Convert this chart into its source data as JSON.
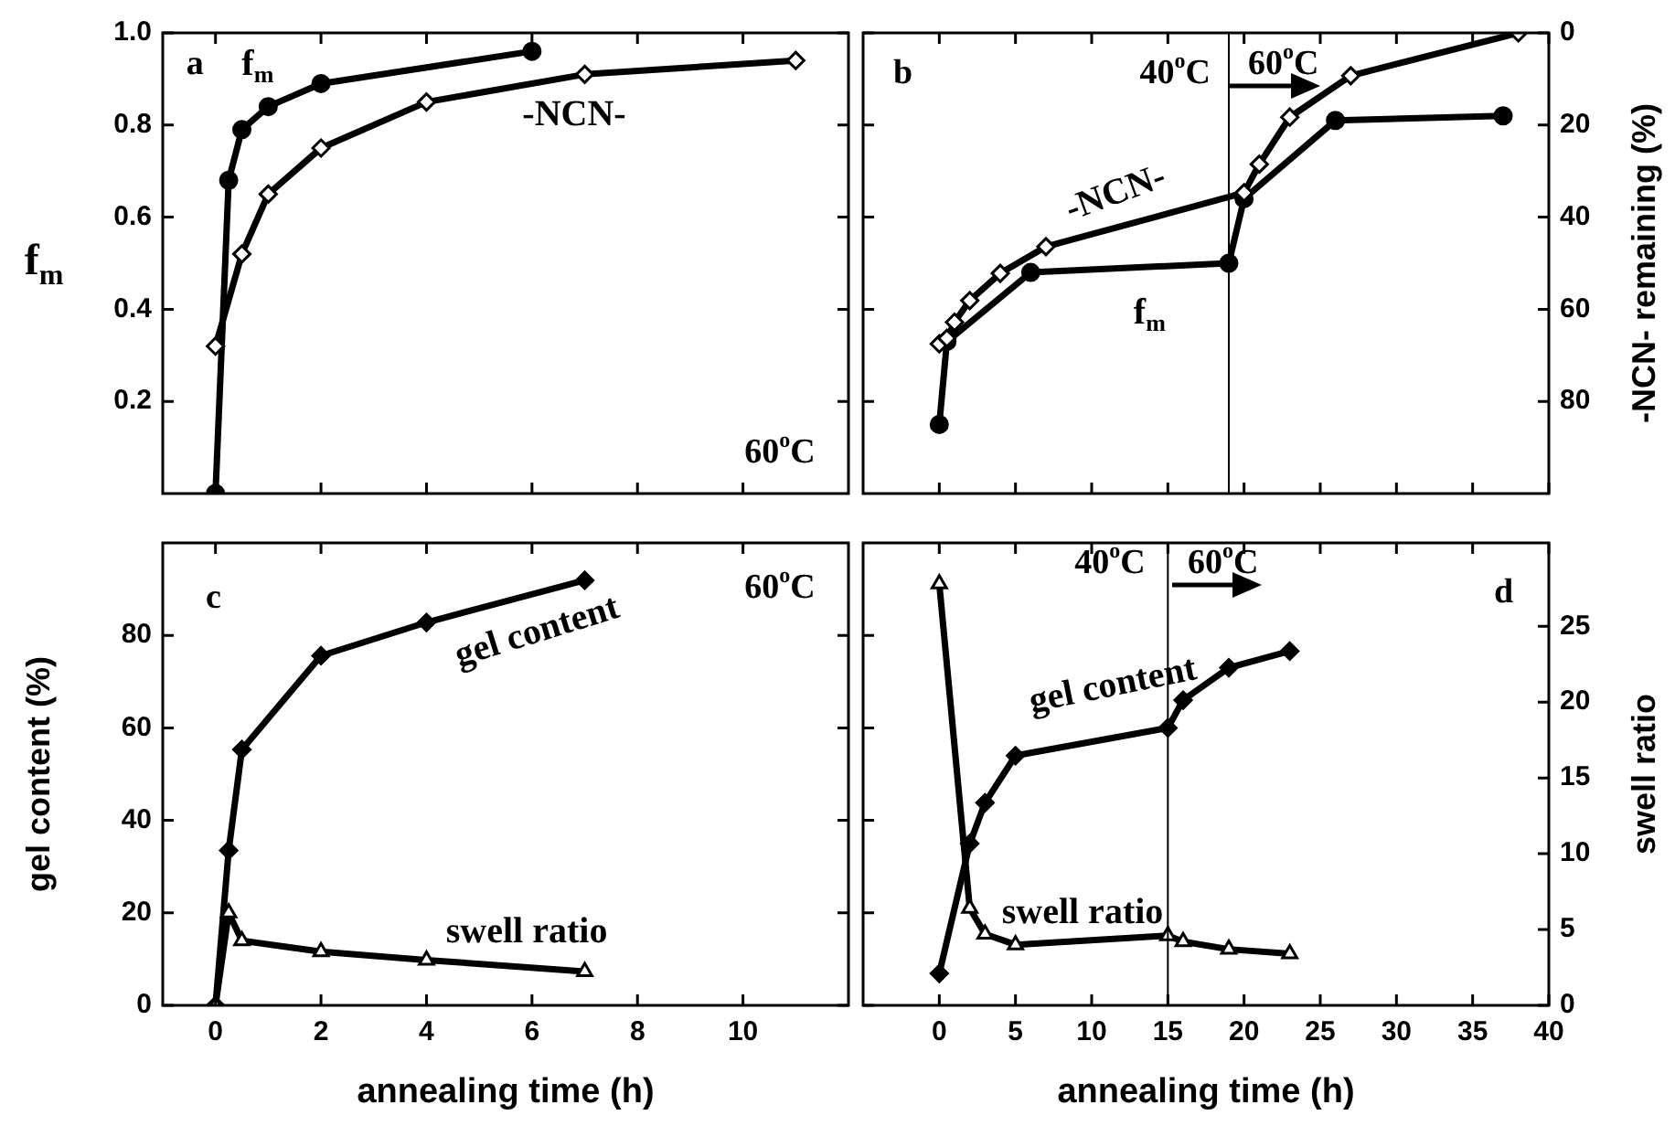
{
  "chart_data": [
    {
      "type": "line",
      "ylabel": "f$_{m}$",
      "xlim": [
        -1,
        12
      ],
      "xticks": [
        0,
        2,
        4,
        6,
        8,
        10
      ],
      "ylim": [
        0,
        1
      ],
      "yticks": [
        0.2,
        0.4,
        0.6,
        0.8,
        {
          "value": 1,
          "label": "1.0"
        }
      ],
      "tick_labels": "y",
      "grid": false,
      "line_style": "solid",
      "annotations": [
        "a",
        "60$^{o}$C"
      ],
      "series": [
        {
          "name": "f$_{m}$",
          "color": "#000000",
          "marker": "circle",
          "x": [
            0,
            0.25,
            0.5,
            1,
            2,
            6
          ],
          "values": [
            0,
            0.68,
            0.79,
            0.84,
            0.89,
            0.96
          ]
        },
        {
          "name": "-NCN-",
          "color": "#000000",
          "marker": "diamond",
          "x": [
            0,
            0.5,
            1,
            2,
            4,
            7,
            11
          ],
          "values": [
            0.32,
            0.52,
            0.65,
            0.75,
            0.85,
            0.91,
            0.94
          ]
        }
      ]
    },
    {
      "type": "line",
      "xlim": [
        -5,
        40
      ],
      "ylim": [
        0,
        1
      ],
      "y2lim": [
        100,
        0
      ],
      "y2ticks": [
        0,
        20,
        40,
        60,
        80
      ],
      "y2label": "-NCN- remaining (%)",
      "tick_labels": [
        "y2"
      ],
      "grid": false,
      "line_style": "solid",
      "ref_lines": [
        {
          "axis": "x",
          "value": 19
        }
      ],
      "annotations": [
        "b",
        "40$^{o}$C",
        "60$^{o}$C"
      ],
      "series": [
        {
          "name": "f$_{m}$",
          "color": "#000000",
          "marker": "circle",
          "x": [
            0,
            0.5,
            6,
            19,
            20,
            26,
            37
          ],
          "values": [
            0.15,
            0.33,
            0.48,
            0.5,
            0.64,
            0.81,
            0.82
          ]
        },
        {
          "name": "-NCN-",
          "color": "#000000",
          "marker": "diamond",
          "axis": "y2",
          "x": [
            0,
            0.5,
            1,
            2,
            4,
            7,
            20,
            21,
            23,
            27,
            38
          ],
          "values": [
            67.5,
            66.3,
            62.8,
            58.1,
            52.2,
            46.4,
            34.7,
            28.5,
            18.3,
            9.3,
            0
          ]
        }
      ]
    },
    {
      "type": "line",
      "xlabel": "annealing time (h)",
      "ylabel": "gel content (%)",
      "xlim": [
        -1,
        12
      ],
      "xticks": [
        0,
        2,
        4,
        6,
        8,
        10
      ],
      "ylim": [
        0,
        100
      ],
      "yticks": [
        0,
        20,
        40,
        60,
        80
      ],
      "grid": false,
      "line_style": "solid",
      "annotations": [
        "c",
        "60$^{o}$C"
      ],
      "series": [
        {
          "name": "gel content",
          "color": "#000000",
          "marker": "diamond",
          "x": [
            0,
            0.25,
            0.5,
            2,
            4,
            7
          ],
          "values": [
            0,
            33.5,
            55.3,
            75.6,
            82.8,
            91.9
          ]
        },
        {
          "name": "swell ratio",
          "color": "#000000",
          "marker": "triangle",
          "x": [
            0,
            0.25,
            0.5,
            2,
            4,
            7
          ],
          "values": [
            0,
            20,
            14,
            11.6,
            9.8,
            7.3
          ]
        }
      ]
    },
    {
      "type": "line",
      "xlabel": "annealing time (h)",
      "xlim": [
        -5,
        40
      ],
      "xticks": [
        0,
        5,
        10,
        15,
        20,
        25,
        30,
        35,
        40
      ],
      "ylim": [
        0,
        100
      ],
      "y2lim": [
        0,
        30.5
      ],
      "y2ticks": [
        0,
        5,
        10,
        15,
        20,
        25
      ],
      "y2label": "swell ratio",
      "tick_labels": [
        "x",
        "y2"
      ],
      "grid": false,
      "line_style": "solid",
      "ref_lines": [
        {
          "axis": "x",
          "value": 15
        }
      ],
      "annotations": [
        "40$^{o}$C",
        "60$^{o}$C",
        "d"
      ],
      "series": [
        {
          "name": "gel content",
          "color": "#000000",
          "marker": "diamond",
          "x": [
            0,
            2,
            3,
            5,
            15,
            16,
            19,
            23
          ],
          "values": [
            6.9,
            35,
            43.8,
            54,
            60,
            66,
            73,
            76.6
          ]
        },
        {
          "name": "swell ratio",
          "color": "#000000",
          "marker": "triangle",
          "axis": "y2",
          "x": [
            0,
            2,
            3,
            5,
            15,
            16,
            19,
            23
          ],
          "values": [
            27.8,
            6.4,
            4.7,
            4.0,
            4.6,
            4.2,
            3.7,
            3.4
          ]
        }
      ]
    }
  ]
}
